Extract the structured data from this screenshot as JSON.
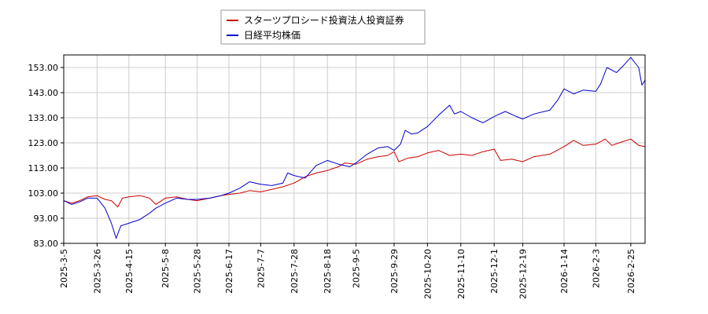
{
  "chart_data": {
    "type": "line",
    "title": "",
    "xlabel": "",
    "ylabel": "",
    "ylim": [
      83.0,
      158.0
    ],
    "y_ticks": [
      "83.00",
      "93.00",
      "103.00",
      "113.00",
      "123.00",
      "133.00",
      "143.00",
      "153.00"
    ],
    "x_range": [
      "2025-03-05",
      "2026-03-06"
    ],
    "x_ticks": [
      "2025-3-5",
      "2025-3-26",
      "2025-4-15",
      "2025-5-8",
      "2025-5-28",
      "2025-6-17",
      "2025-7-7",
      "2025-7-28",
      "2025-8-18",
      "2025-9-5",
      "2025-9-29",
      "2025-10-20",
      "2025-11-10",
      "2025-12-1",
      "2025-12-19",
      "2026-1-14",
      "2026-2-3",
      "2026-2-25"
    ],
    "grid": true,
    "legend_position": "top-center",
    "series": [
      {
        "name": "スターツプロシード投資法人投資証券",
        "color": "#cc0000",
        "points": [
          [
            "2025-03-05",
            100.0
          ],
          [
            "2025-03-10",
            99.0
          ],
          [
            "2025-03-15",
            100.0
          ],
          [
            "2025-03-20",
            101.5
          ],
          [
            "2025-03-26",
            102.0
          ],
          [
            "2025-03-31",
            100.5
          ],
          [
            "2025-04-04",
            100.0
          ],
          [
            "2025-04-08",
            97.5
          ],
          [
            "2025-04-11",
            101.0
          ],
          [
            "2025-04-15",
            101.5
          ],
          [
            "2025-04-22",
            102.0
          ],
          [
            "2025-04-28",
            101.0
          ],
          [
            "2025-05-02",
            98.5
          ],
          [
            "2025-05-08",
            101.0
          ],
          [
            "2025-05-15",
            101.5
          ],
          [
            "2025-05-22",
            100.5
          ],
          [
            "2025-05-28",
            100.0
          ],
          [
            "2025-06-05",
            101.0
          ],
          [
            "2025-06-12",
            102.0
          ],
          [
            "2025-06-17",
            102.5
          ],
          [
            "2025-06-24",
            103.0
          ],
          [
            "2025-06-30",
            104.0
          ],
          [
            "2025-07-07",
            103.5
          ],
          [
            "2025-07-14",
            104.5
          ],
          [
            "2025-07-21",
            105.5
          ],
          [
            "2025-07-28",
            107.0
          ],
          [
            "2025-08-04",
            109.5
          ],
          [
            "2025-08-11",
            111.0
          ],
          [
            "2025-08-18",
            112.0
          ],
          [
            "2025-08-25",
            113.5
          ],
          [
            "2025-08-29",
            115.0
          ],
          [
            "2025-09-05",
            114.5
          ],
          [
            "2025-09-12",
            116.5
          ],
          [
            "2025-09-19",
            117.5
          ],
          [
            "2025-09-25",
            118.0
          ],
          [
            "2025-09-29",
            119.5
          ],
          [
            "2025-10-02",
            115.5
          ],
          [
            "2025-10-08",
            117.0
          ],
          [
            "2025-10-14",
            117.5
          ],
          [
            "2025-10-20",
            119.0
          ],
          [
            "2025-10-27",
            120.0
          ],
          [
            "2025-11-03",
            118.0
          ],
          [
            "2025-11-10",
            118.5
          ],
          [
            "2025-11-17",
            118.0
          ],
          [
            "2025-11-24",
            119.5
          ],
          [
            "2025-12-01",
            120.5
          ],
          [
            "2025-12-05",
            116.0
          ],
          [
            "2025-12-12",
            116.5
          ],
          [
            "2025-12-19",
            115.5
          ],
          [
            "2025-12-26",
            117.5
          ],
          [
            "2026-01-05",
            118.5
          ],
          [
            "2026-01-14",
            121.5
          ],
          [
            "2026-01-20",
            124.0
          ],
          [
            "2026-01-26",
            122.0
          ],
          [
            "2026-02-03",
            122.5
          ],
          [
            "2026-02-09",
            124.5
          ],
          [
            "2026-02-13",
            122.0
          ],
          [
            "2026-02-20",
            123.5
          ],
          [
            "2026-02-25",
            124.5
          ],
          [
            "2026-03-02",
            122.0
          ],
          [
            "2026-03-06",
            121.5
          ]
        ]
      },
      {
        "name": "日経平均株価",
        "color": "#0000cc",
        "points": [
          [
            "2025-03-05",
            100.0
          ],
          [
            "2025-03-10",
            98.5
          ],
          [
            "2025-03-15",
            99.5
          ],
          [
            "2025-03-20",
            101.0
          ],
          [
            "2025-03-26",
            101.0
          ],
          [
            "2025-03-31",
            97.0
          ],
          [
            "2025-04-04",
            91.0
          ],
          [
            "2025-04-07",
            85.0
          ],
          [
            "2025-04-10",
            90.0
          ],
          [
            "2025-04-15",
            91.0
          ],
          [
            "2025-04-22",
            92.5
          ],
          [
            "2025-04-28",
            95.0
          ],
          [
            "2025-05-02",
            97.0
          ],
          [
            "2025-05-08",
            99.0
          ],
          [
            "2025-05-15",
            101.0
          ],
          [
            "2025-05-22",
            100.5
          ],
          [
            "2025-05-28",
            100.5
          ],
          [
            "2025-06-05",
            101.0
          ],
          [
            "2025-06-12",
            102.0
          ],
          [
            "2025-06-17",
            103.0
          ],
          [
            "2025-06-24",
            105.0
          ],
          [
            "2025-06-30",
            107.5
          ],
          [
            "2025-07-07",
            106.5
          ],
          [
            "2025-07-14",
            106.0
          ],
          [
            "2025-07-21",
            107.0
          ],
          [
            "2025-07-24",
            111.0
          ],
          [
            "2025-07-28",
            110.0
          ],
          [
            "2025-08-04",
            109.0
          ],
          [
            "2025-08-11",
            114.0
          ],
          [
            "2025-08-18",
            116.0
          ],
          [
            "2025-08-25",
            114.5
          ],
          [
            "2025-09-01",
            113.5
          ],
          [
            "2025-09-05",
            115.0
          ],
          [
            "2025-09-12",
            118.5
          ],
          [
            "2025-09-19",
            121.0
          ],
          [
            "2025-09-25",
            121.5
          ],
          [
            "2025-09-29",
            120.0
          ],
          [
            "2025-10-03",
            122.5
          ],
          [
            "2025-10-06",
            128.0
          ],
          [
            "2025-10-10",
            126.5
          ],
          [
            "2025-10-14",
            127.0
          ],
          [
            "2025-10-20",
            129.5
          ],
          [
            "2025-10-27",
            134.0
          ],
          [
            "2025-11-03",
            138.0
          ],
          [
            "2025-11-06",
            134.5
          ],
          [
            "2025-11-10",
            135.5
          ],
          [
            "2025-11-17",
            133.0
          ],
          [
            "2025-11-24",
            131.0
          ],
          [
            "2025-12-01",
            133.5
          ],
          [
            "2025-12-08",
            135.5
          ],
          [
            "2025-12-15",
            133.5
          ],
          [
            "2025-12-19",
            132.5
          ],
          [
            "2025-12-26",
            134.5
          ],
          [
            "2026-01-05",
            136.0
          ],
          [
            "2026-01-10",
            140.0
          ],
          [
            "2026-01-14",
            144.5
          ],
          [
            "2026-01-20",
            142.5
          ],
          [
            "2026-01-26",
            144.0
          ],
          [
            "2026-02-03",
            143.5
          ],
          [
            "2026-02-06",
            146.5
          ],
          [
            "2026-02-10",
            153.0
          ],
          [
            "2026-02-16",
            151.0
          ],
          [
            "2026-02-20",
            153.5
          ],
          [
            "2026-02-25",
            157.0
          ],
          [
            "2026-03-02",
            153.0
          ],
          [
            "2026-03-04",
            146.0
          ],
          [
            "2026-03-06",
            148.0
          ]
        ]
      }
    ]
  }
}
